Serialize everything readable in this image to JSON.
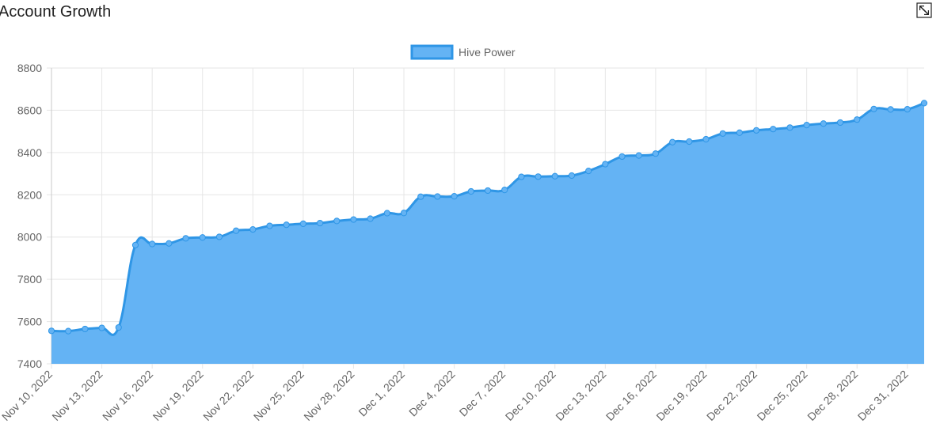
{
  "page": {
    "title": "Account Growth",
    "expand_icon": "expand-icon"
  },
  "colors": {
    "line": "#2f96e6",
    "fill": "#64b3f4",
    "point": "#64b3f4",
    "grid": "#e6e6e6",
    "axis": "#c9c9c9",
    "text": "#666666"
  },
  "chart_data": {
    "type": "area",
    "legend": {
      "position": "top",
      "entries": [
        "Hive Power"
      ]
    },
    "series": [
      {
        "name": "Hive Power",
        "values": [
          7556,
          7555,
          7565,
          7570,
          7572,
          7962,
          7967,
          7970,
          7994,
          7998,
          8001,
          8030,
          8036,
          8053,
          8058,
          8063,
          8066,
          8076,
          8083,
          8087,
          8113,
          8114,
          8191,
          8192,
          8193,
          8216,
          8220,
          8223,
          8285,
          8286,
          8288,
          8291,
          8313,
          8345,
          8381,
          8386,
          8395,
          8449,
          8452,
          8463,
          8490,
          8494,
          8505,
          8511,
          8518,
          8530,
          8537,
          8542,
          8556,
          8606,
          8604,
          8605,
          8634
        ]
      }
    ],
    "x": [
      "Nov 10, 2022",
      "Nov 11, 2022",
      "Nov 12, 2022",
      "Nov 13, 2022",
      "Nov 14, 2022",
      "Nov 15, 2022",
      "Nov 16, 2022",
      "Nov 17, 2022",
      "Nov 18, 2022",
      "Nov 19, 2022",
      "Nov 20, 2022",
      "Nov 21, 2022",
      "Nov 22, 2022",
      "Nov 23, 2022",
      "Nov 24, 2022",
      "Nov 25, 2022",
      "Nov 26, 2022",
      "Nov 27, 2022",
      "Nov 28, 2022",
      "Nov 29, 2022",
      "Nov 30, 2022",
      "Dec 1, 2022",
      "Dec 2, 2022",
      "Dec 3, 2022",
      "Dec 4, 2022",
      "Dec 5, 2022",
      "Dec 6, 2022",
      "Dec 7, 2022",
      "Dec 8, 2022",
      "Dec 9, 2022",
      "Dec 10, 2022",
      "Dec 11, 2022",
      "Dec 12, 2022",
      "Dec 13, 2022",
      "Dec 14, 2022",
      "Dec 15, 2022",
      "Dec 16, 2022",
      "Dec 17, 2022",
      "Dec 18, 2022",
      "Dec 19, 2022",
      "Dec 20, 2022",
      "Dec 21, 2022",
      "Dec 22, 2022",
      "Dec 23, 2022",
      "Dec 24, 2022",
      "Dec 25, 2022",
      "Dec 26, 2022",
      "Dec 27, 2022",
      "Dec 28, 2022",
      "Dec 29, 2022",
      "Dec 30, 2022",
      "Dec 31, 2022",
      "Jan 1, 2023"
    ],
    "x_tick_labels": [
      "Nov 10, 2022",
      "Nov 13, 2022",
      "Nov 16, 2022",
      "Nov 19, 2022",
      "Nov 22, 2022",
      "Nov 25, 2022",
      "Nov 28, 2022",
      "Dec 1, 2022",
      "Dec 4, 2022",
      "Dec 7, 2022",
      "Dec 10, 2022",
      "Dec 13, 2022",
      "Dec 16, 2022",
      "Dec 19, 2022",
      "Dec 22, 2022",
      "Dec 25, 2022",
      "Dec 28, 2022",
      "Dec 31, 2022"
    ],
    "y_ticks": [
      7400,
      7600,
      7800,
      8000,
      8200,
      8400,
      8600,
      8800
    ],
    "ylim": [
      7400,
      8800
    ],
    "grid": true
  }
}
